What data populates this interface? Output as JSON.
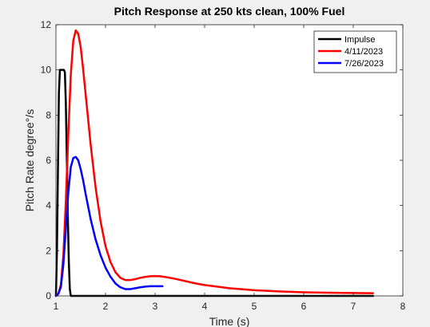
{
  "chart_data": {
    "type": "line",
    "title": "Pitch Response at 250 kts clean, 100% Fuel",
    "xlabel": "Time (s)",
    "ylabel": "Pitch Rate degree°/s",
    "xlim": [
      1,
      8
    ],
    "ylim": [
      0,
      12
    ],
    "xticks": [
      1,
      2,
      3,
      4,
      5,
      6,
      7,
      8
    ],
    "yticks": [
      0,
      2,
      4,
      6,
      8,
      10,
      12
    ],
    "grid": false,
    "legend": "top-right",
    "series": [
      {
        "name": "Impulse",
        "color": "#000000",
        "x": [
          1.0,
          1.02,
          1.04,
          1.06,
          1.08,
          1.1,
          1.12,
          1.14,
          1.16,
          1.18,
          1.2,
          1.22,
          1.24,
          1.26,
          1.28,
          1.3,
          7.4
        ],
        "y": [
          0,
          2.0,
          5.5,
          9.0,
          10.0,
          10.0,
          10.0,
          10.0,
          10.0,
          9.9,
          8.5,
          6.0,
          3.5,
          1.5,
          0.3,
          0,
          0
        ]
      },
      {
        "name": "4/11/2023",
        "color": "#ff0000",
        "x": [
          1.0,
          1.05,
          1.1,
          1.15,
          1.2,
          1.25,
          1.3,
          1.35,
          1.4,
          1.45,
          1.5,
          1.55,
          1.6,
          1.7,
          1.8,
          1.9,
          2.0,
          2.1,
          2.2,
          2.3,
          2.4,
          2.5,
          2.6,
          2.7,
          2.8,
          2.9,
          3.0,
          3.1,
          3.2,
          3.4,
          3.6,
          3.8,
          4.0,
          4.5,
          5.0,
          5.5,
          6.0,
          6.5,
          7.0,
          7.4
        ],
        "y": [
          0,
          0.1,
          0.5,
          1.8,
          4.2,
          7.2,
          9.8,
          11.3,
          11.75,
          11.6,
          11.0,
          10.0,
          8.9,
          6.7,
          4.8,
          3.3,
          2.2,
          1.5,
          1.05,
          0.8,
          0.7,
          0.7,
          0.74,
          0.8,
          0.84,
          0.87,
          0.88,
          0.87,
          0.84,
          0.76,
          0.66,
          0.56,
          0.48,
          0.34,
          0.25,
          0.2,
          0.16,
          0.14,
          0.13,
          0.12
        ]
      },
      {
        "name": "7/26/2023",
        "color": "#0000ff",
        "x": [
          1.0,
          1.05,
          1.1,
          1.15,
          1.2,
          1.25,
          1.3,
          1.35,
          1.4,
          1.45,
          1.5,
          1.55,
          1.6,
          1.7,
          1.8,
          1.9,
          2.0,
          2.1,
          2.2,
          2.3,
          2.4,
          2.5,
          2.6,
          2.7,
          2.8,
          2.9,
          3.0,
          3.1,
          3.15
        ],
        "y": [
          0,
          0.1,
          0.4,
          1.4,
          3.0,
          4.6,
          5.7,
          6.1,
          6.15,
          6.0,
          5.6,
          5.1,
          4.5,
          3.4,
          2.5,
          1.8,
          1.25,
          0.85,
          0.55,
          0.38,
          0.3,
          0.3,
          0.34,
          0.38,
          0.41,
          0.43,
          0.43,
          0.43,
          0.43
        ]
      }
    ]
  }
}
